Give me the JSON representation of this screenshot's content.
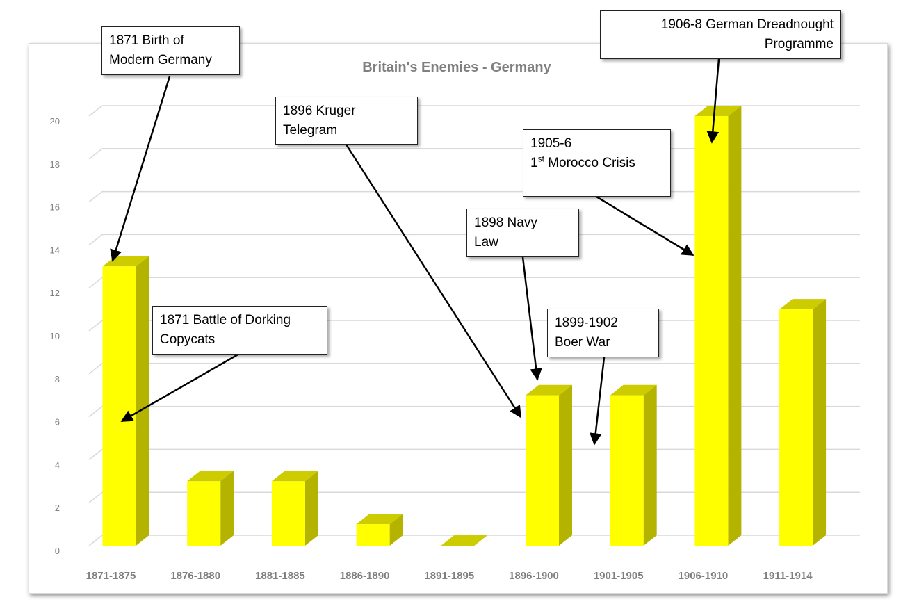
{
  "chart_data": {
    "type": "bar",
    "title": "Britain's Enemies - Germany",
    "categories": [
      "1871-1875",
      "1876-1880",
      "1881-1885",
      "1886-1890",
      "1891-1895",
      "1896-1900",
      "1901-1905",
      "1906-1910",
      "1911-1914"
    ],
    "series": [
      {
        "values": [
          13,
          3,
          3,
          1,
          0,
          7,
          7,
          20,
          11
        ]
      }
    ],
    "ylim": [
      0,
      20
    ],
    "yticks": [
      "0",
      "2",
      "4",
      "6",
      "8",
      "10",
      "12",
      "14",
      "16",
      "18",
      "20"
    ],
    "grid": true,
    "bar_color": "#ffff00",
    "bar_side_color": "#b3b300",
    "bar_top_color": "#cccc00"
  },
  "annotations": [
    {
      "lines": [
        "1871 Birth of",
        "Modern Germany"
      ]
    },
    {
      "lines": [
        "1871 Battle of Dorking",
        "Copycats"
      ]
    },
    {
      "lines": [
        "1896  Kruger",
        "Telegram"
      ]
    },
    {
      "lines": [
        "1898  Navy",
        "Law"
      ]
    },
    {
      "lines": [
        "1899-1902",
        "Boer War"
      ]
    },
    {
      "lines": [
        "1905-6",
        "1",
        "st",
        " Morocco Crisis"
      ]
    },
    {
      "lines": [
        "1906-8 German Dreadnought",
        "Programme"
      ]
    }
  ]
}
